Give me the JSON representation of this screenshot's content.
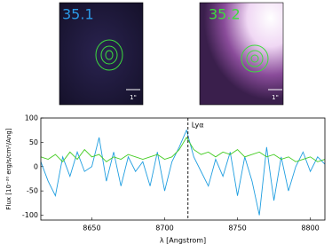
{
  "panels": [
    {
      "label": "35.1",
      "scale": "1\""
    },
    {
      "label": "35.2",
      "scale": "1\""
    }
  ],
  "chart_data": {
    "type": "line",
    "xlabel": "λ [Angstrom]",
    "ylabel": "Flux [10⁻²⁰ erg/s/cm²/Ang]",
    "x": [
      8615,
      8620,
      8625,
      8630,
      8635,
      8640,
      8645,
      8650,
      8655,
      8660,
      8665,
      8670,
      8675,
      8680,
      8685,
      8690,
      8695,
      8700,
      8705,
      8710,
      8715,
      8720,
      8725,
      8730,
      8735,
      8740,
      8745,
      8750,
      8755,
      8760,
      8765,
      8770,
      8775,
      8780,
      8785,
      8790,
      8795,
      8800,
      8805,
      8810
    ],
    "series": [
      {
        "color": "#1f9ee0",
        "values": [
          10,
          -30,
          -60,
          20,
          -20,
          30,
          -10,
          0,
          60,
          -30,
          30,
          -40,
          20,
          -10,
          10,
          -40,
          30,
          -50,
          10,
          40,
          75,
          20,
          -10,
          -40,
          15,
          -20,
          30,
          -60,
          20,
          -30,
          -100,
          40,
          -70,
          20,
          -50,
          0,
          30,
          -10,
          20,
          5
        ]
      },
      {
        "color": "#44cc22",
        "values": [
          20,
          15,
          25,
          10,
          30,
          15,
          35,
          20,
          25,
          10,
          20,
          15,
          25,
          20,
          15,
          20,
          25,
          15,
          20,
          35,
          60,
          35,
          25,
          30,
          20,
          30,
          25,
          35,
          20,
          25,
          30,
          20,
          25,
          15,
          20,
          10,
          15,
          20,
          10,
          15
        ]
      }
    ],
    "annotation": {
      "text": "Lyα",
      "x": 8716
    },
    "xlim": [
      8615,
      8810
    ],
    "ylim": [
      -110,
      100
    ],
    "xticks": [
      8650,
      8700,
      8750,
      8800
    ],
    "yticks": [
      -100,
      -50,
      0,
      50,
      100
    ]
  }
}
